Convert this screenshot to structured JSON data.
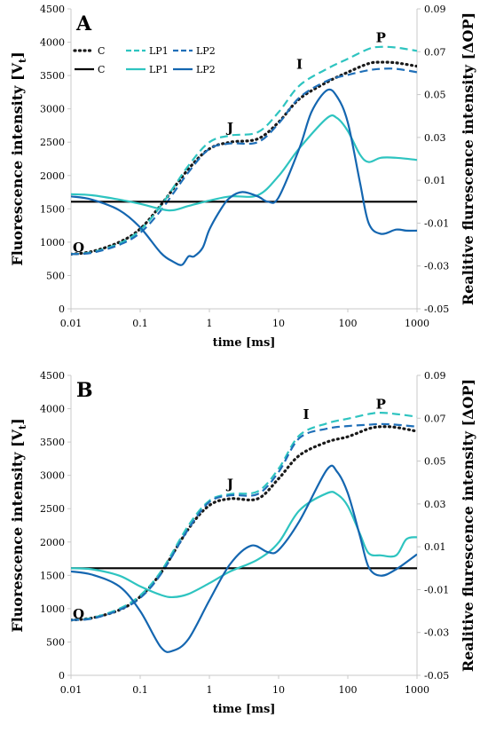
{
  "chart_data": [
    {
      "type": "line",
      "panel_label": "A",
      "xlabel": "time [ms]",
      "ylabel": "Fluorescence intensity [V",
      "ylabel_sub": "t",
      "ylabel_close": "]",
      "y2label": "Realitive flurescence intensity [ΔOP]",
      "x_scale": "log",
      "xlim": [
        0.01,
        1000
      ],
      "ylim": [
        0,
        4500
      ],
      "y2lim": [
        -0.05,
        0.09
      ],
      "x_ticks": [
        "0.01",
        "0.1",
        "1",
        "10",
        "100",
        "1000"
      ],
      "y_ticks": [
        "0",
        "500",
        "1000",
        "1500",
        "2000",
        "2500",
        "3000",
        "3500",
        "4000",
        "4500"
      ],
      "y2_ticks": [
        "-0.05",
        "-0.03",
        "-0.01",
        "0.01",
        "0.03",
        "0.05",
        "0.07",
        "0.09"
      ],
      "legend": {
        "position": "top-left",
        "entries": [
          "C",
          "LP1",
          "LP2",
          "C",
          "LP1",
          "LP2"
        ]
      },
      "annotations": [
        {
          "text": "O",
          "x": 0.01,
          "y": 850
        },
        {
          "text": "J",
          "x": 2,
          "y": 2650
        },
        {
          "text": "I",
          "x": 20,
          "y": 3600
        },
        {
          "text": "P",
          "x": 300,
          "y": 4000
        }
      ],
      "series": [
        {
          "name": "C",
          "axis": "left",
          "style": "dotted",
          "color": "#1a1a1a",
          "x": [
            0.01,
            0.02,
            0.05,
            0.1,
            0.2,
            0.5,
            1,
            2,
            5,
            10,
            20,
            50,
            100,
            200,
            300,
            500,
            1000
          ],
          "y": [
            820,
            860,
            1000,
            1200,
            1560,
            2100,
            2400,
            2500,
            2550,
            2800,
            3150,
            3400,
            3550,
            3680,
            3700,
            3690,
            3640
          ]
        },
        {
          "name": "LP1",
          "axis": "left",
          "style": "dashed",
          "color": "#2ec4c0",
          "x": [
            0.01,
            0.02,
            0.05,
            0.1,
            0.2,
            0.5,
            1,
            2,
            5,
            10,
            20,
            50,
            100,
            200,
            300,
            500,
            1000
          ],
          "y": [
            820,
            850,
            980,
            1180,
            1550,
            2150,
            2500,
            2600,
            2650,
            2950,
            3350,
            3600,
            3750,
            3900,
            3930,
            3920,
            3870
          ]
        },
        {
          "name": "LP2",
          "axis": "left",
          "style": "dashed",
          "color": "#1f6fb8",
          "x": [
            0.01,
            0.02,
            0.05,
            0.1,
            0.2,
            0.5,
            1,
            2,
            5,
            10,
            20,
            50,
            100,
            200,
            300,
            500,
            1000
          ],
          "y": [
            820,
            840,
            960,
            1140,
            1480,
            2050,
            2400,
            2480,
            2500,
            2780,
            3170,
            3420,
            3510,
            3580,
            3600,
            3600,
            3550
          ]
        },
        {
          "name": "C",
          "axis": "right",
          "style": "solid",
          "color": "#000000",
          "x": [
            0.01,
            1000
          ],
          "y": [
            0.0,
            0.0
          ]
        },
        {
          "name": "LP1",
          "axis": "right",
          "style": "solid",
          "color": "#2ec4c0",
          "x": [
            0.01,
            0.02,
            0.05,
            0.1,
            0.2,
            0.3,
            0.5,
            1,
            2,
            5,
            10,
            20,
            50,
            70,
            100,
            150,
            200,
            300,
            500,
            1000
          ],
          "y": [
            0.0035,
            0.003,
            0.001,
            -0.001,
            -0.0035,
            -0.004,
            -0.002,
            0.0005,
            0.0025,
            0.003,
            0.012,
            0.025,
            0.039,
            0.039,
            0.033,
            0.022,
            0.0185,
            0.0205,
            0.0205,
            0.0195
          ]
        },
        {
          "name": "LP2",
          "axis": "right",
          "style": "solid",
          "color": "#1466b0",
          "x": [
            0.01,
            0.02,
            0.05,
            0.1,
            0.2,
            0.3,
            0.4,
            0.5,
            0.6,
            0.8,
            1,
            1.5,
            2,
            3,
            5,
            7,
            10,
            20,
            30,
            50,
            70,
            100,
            150,
            200,
            300,
            500,
            700,
            1000
          ],
          "y": [
            0.0025,
            0.001,
            -0.004,
            -0.012,
            -0.024,
            -0.028,
            -0.0295,
            -0.0255,
            -0.0255,
            -0.0215,
            -0.013,
            -0.003,
            0.002,
            0.0045,
            0.0025,
            0.0,
            0.002,
            0.025,
            0.042,
            0.052,
            0.049,
            0.037,
            0.009,
            -0.01,
            -0.015,
            -0.013,
            -0.0135,
            -0.0135
          ]
        }
      ]
    },
    {
      "type": "line",
      "panel_label": "B",
      "xlabel": "time [ms]",
      "ylabel": "Fluorescence intensity [V",
      "ylabel_sub": "t",
      "ylabel_close": "]",
      "y2label": "Realitive flurescence intensity [ΔOP]",
      "x_scale": "log",
      "xlim": [
        0.01,
        1000
      ],
      "ylim": [
        0,
        4500
      ],
      "y2lim": [
        -0.05,
        0.09
      ],
      "x_ticks": [
        "0.01",
        "0.1",
        "1",
        "10",
        "100",
        "1000"
      ],
      "y_ticks": [
        "0",
        "500",
        "1000",
        "1500",
        "2000",
        "2500",
        "3000",
        "3500",
        "4000",
        "4500"
      ],
      "y2_ticks": [
        "-0.05",
        "-0.03",
        "-0.01",
        "0.01",
        "0.03",
        "0.05",
        "0.07",
        "0.09"
      ],
      "annotations": [
        {
          "text": "O",
          "x": 0.01,
          "y": 850
        },
        {
          "text": "J",
          "x": 2,
          "y": 2800
        },
        {
          "text": "I",
          "x": 25,
          "y": 3850
        },
        {
          "text": "P",
          "x": 300,
          "y": 4000
        }
      ],
      "series": [
        {
          "name": "C",
          "axis": "left",
          "style": "dotted",
          "color": "#1a1a1a",
          "x": [
            0.01,
            0.02,
            0.05,
            0.1,
            0.2,
            0.5,
            1,
            2,
            5,
            10,
            20,
            50,
            100,
            200,
            300,
            500,
            1000
          ],
          "y": [
            830,
            860,
            980,
            1180,
            1540,
            2200,
            2550,
            2650,
            2650,
            2950,
            3300,
            3500,
            3580,
            3700,
            3730,
            3720,
            3660
          ]
        },
        {
          "name": "LP1",
          "axis": "left",
          "style": "dashed",
          "color": "#2ec4c0",
          "x": [
            0.01,
            0.02,
            0.05,
            0.1,
            0.2,
            0.5,
            1,
            2,
            5,
            10,
            20,
            50,
            100,
            200,
            300,
            500,
            1000
          ],
          "y": [
            830,
            860,
            1000,
            1200,
            1560,
            2250,
            2620,
            2720,
            2760,
            3100,
            3600,
            3780,
            3850,
            3920,
            3940,
            3920,
            3880
          ]
        },
        {
          "name": "LP2",
          "axis": "left",
          "style": "dashed",
          "color": "#1f6fb8",
          "x": [
            0.01,
            0.02,
            0.05,
            0.1,
            0.2,
            0.5,
            1,
            2,
            5,
            10,
            20,
            50,
            100,
            200,
            300,
            500,
            1000
          ],
          "y": [
            830,
            850,
            980,
            1160,
            1520,
            2200,
            2600,
            2700,
            2720,
            3050,
            3560,
            3700,
            3740,
            3760,
            3770,
            3760,
            3730
          ]
        },
        {
          "name": "C",
          "axis": "right",
          "style": "solid",
          "color": "#000000",
          "x": [
            0.01,
            1000
          ],
          "y": [
            0.0,
            0.0
          ]
        },
        {
          "name": "LP1",
          "axis": "right",
          "style": "solid",
          "color": "#2ec4c0",
          "x": [
            0.01,
            0.02,
            0.05,
            0.1,
            0.2,
            0.3,
            0.5,
            1,
            2,
            5,
            10,
            20,
            50,
            70,
            100,
            150,
            200,
            300,
            500,
            700,
            1000
          ],
          "y": [
            0.0,
            -0.0005,
            -0.0035,
            -0.0085,
            -0.0125,
            -0.0135,
            -0.012,
            -0.007,
            -0.0015,
            0.004,
            0.012,
            0.027,
            0.035,
            0.0345,
            0.029,
            0.016,
            0.007,
            0.006,
            0.006,
            0.0135,
            0.0145
          ]
        },
        {
          "name": "LP2",
          "axis": "right",
          "style": "solid",
          "color": "#1466b0",
          "x": [
            0.01,
            0.02,
            0.05,
            0.1,
            0.2,
            0.3,
            0.5,
            1,
            2,
            4,
            7,
            10,
            20,
            50,
            70,
            100,
            150,
            200,
            300,
            500,
            1000
          ],
          "y": [
            -0.0015,
            -0.003,
            -0.0085,
            -0.02,
            -0.037,
            -0.0385,
            -0.033,
            -0.015,
            0.002,
            0.0105,
            0.0075,
            0.0085,
            0.022,
            0.046,
            0.045,
            0.035,
            0.015,
            0.0005,
            -0.0035,
            -0.0005,
            0.0065
          ]
        }
      ]
    }
  ]
}
